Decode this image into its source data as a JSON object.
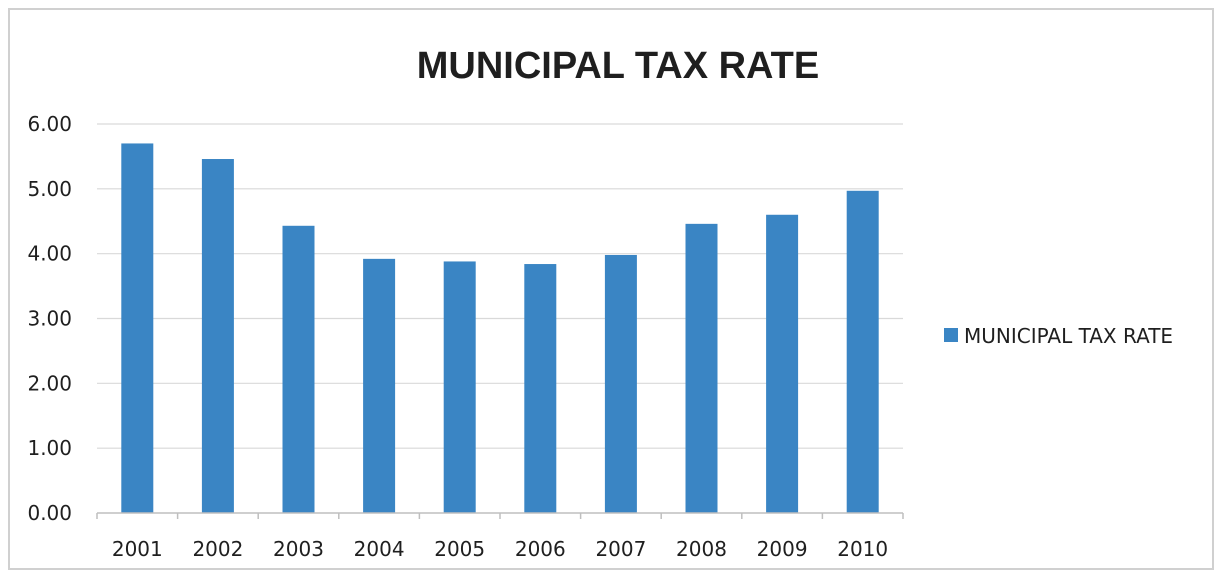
{
  "chart_data": {
    "type": "bar",
    "title": "MUNICIPAL TAX RATE",
    "categories": [
      "2001",
      "2002",
      "2003",
      "2004",
      "2005",
      "2006",
      "2007",
      "2008",
      "2009",
      "2010"
    ],
    "series": [
      {
        "name": "MUNICIPAL TAX RATE",
        "values": [
          5.7,
          5.46,
          4.43,
          3.92,
          3.88,
          3.84,
          3.98,
          4.46,
          4.6,
          4.97
        ],
        "color": "#3a85c4"
      }
    ],
    "y_ticks": [
      "0.00",
      "1.00",
      "2.00",
      "3.00",
      "4.00",
      "5.00",
      "6.00"
    ],
    "ylim": [
      0,
      6
    ],
    "grid": true,
    "legend": "right",
    "gridline_color": "#d9d9d9",
    "axis_color": "#bfbfbf"
  }
}
